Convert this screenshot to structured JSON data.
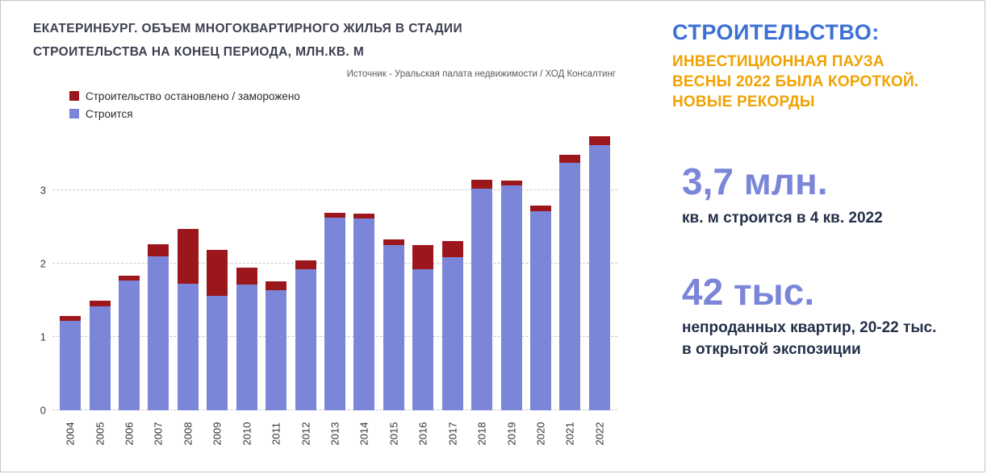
{
  "chart_data": {
    "type": "bar",
    "stacked": true,
    "title_line1": "ЕКАТЕРИНБУРГ. ОБЪЕМ МНОГОКВАРТИРНОГО ЖИЛЬЯ В СТАДИИ",
    "title_line2": "СТРОИТЕЛЬСТВА НА КОНЕЦ ПЕРИОДА, МЛН.КВ. М",
    "source": "Источник - Уральская палата недвижимости / ХОД Консалтинг",
    "categories": [
      "2004",
      "2005",
      "2006",
      "2007",
      "2008",
      "2009",
      "2010",
      "2011",
      "2012",
      "2013",
      "2014",
      "2015",
      "2016",
      "2017",
      "2018",
      "2019",
      "2020",
      "2021",
      "2022"
    ],
    "series": [
      {
        "key": "under-construction",
        "name": "Строится",
        "color": "#7b86d9",
        "values": [
          1.22,
          1.42,
          1.77,
          2.1,
          1.73,
          1.56,
          1.72,
          1.64,
          1.92,
          2.63,
          2.62,
          2.25,
          1.92,
          2.09,
          3.02,
          3.07,
          2.72,
          3.38,
          3.62
        ]
      },
      {
        "key": "stopped",
        "name": "Строительство остановлено / заморожено",
        "color": "#9c171b",
        "values": [
          0.07,
          0.08,
          0.07,
          0.17,
          0.74,
          0.63,
          0.23,
          0.12,
          0.12,
          0.06,
          0.06,
          0.08,
          0.33,
          0.22,
          0.13,
          0.06,
          0.07,
          0.11,
          0.12
        ]
      }
    ],
    "legend": [
      {
        "label": "Строительство остановлено / заморожено",
        "color": "#9c171b"
      },
      {
        "label": "Строится",
        "color": "#7b86d9"
      }
    ],
    "ylim": [
      0,
      3.85
    ],
    "yticks": [
      0,
      1,
      2,
      3
    ],
    "grid": "horizontal-dashed",
    "legend_position": "top-left",
    "xlabel": "",
    "ylabel": ""
  },
  "panel": {
    "heading": "СТРОИТЕЛЬСТВО:",
    "sub_lines": [
      "ИНВЕСТИЦИОННАЯ ПАУЗА",
      "ВЕСНЫ 2022 БЫЛА КОРОТКОЙ.",
      "НОВЫЕ РЕКОРДЫ"
    ],
    "stat1": {
      "value": "3,7 млн.",
      "label": "кв. м строится в 4 кв. 2022"
    },
    "stat2": {
      "value": "42 тыс.",
      "label": "непроданных квартир, 20-22 тыс. в открытой экспозиции"
    },
    "colors": {
      "heading": "#3c70d5",
      "accent_orange": "#f0a202",
      "stat_value": "#7b86d9",
      "stat_label": "#233049"
    }
  }
}
